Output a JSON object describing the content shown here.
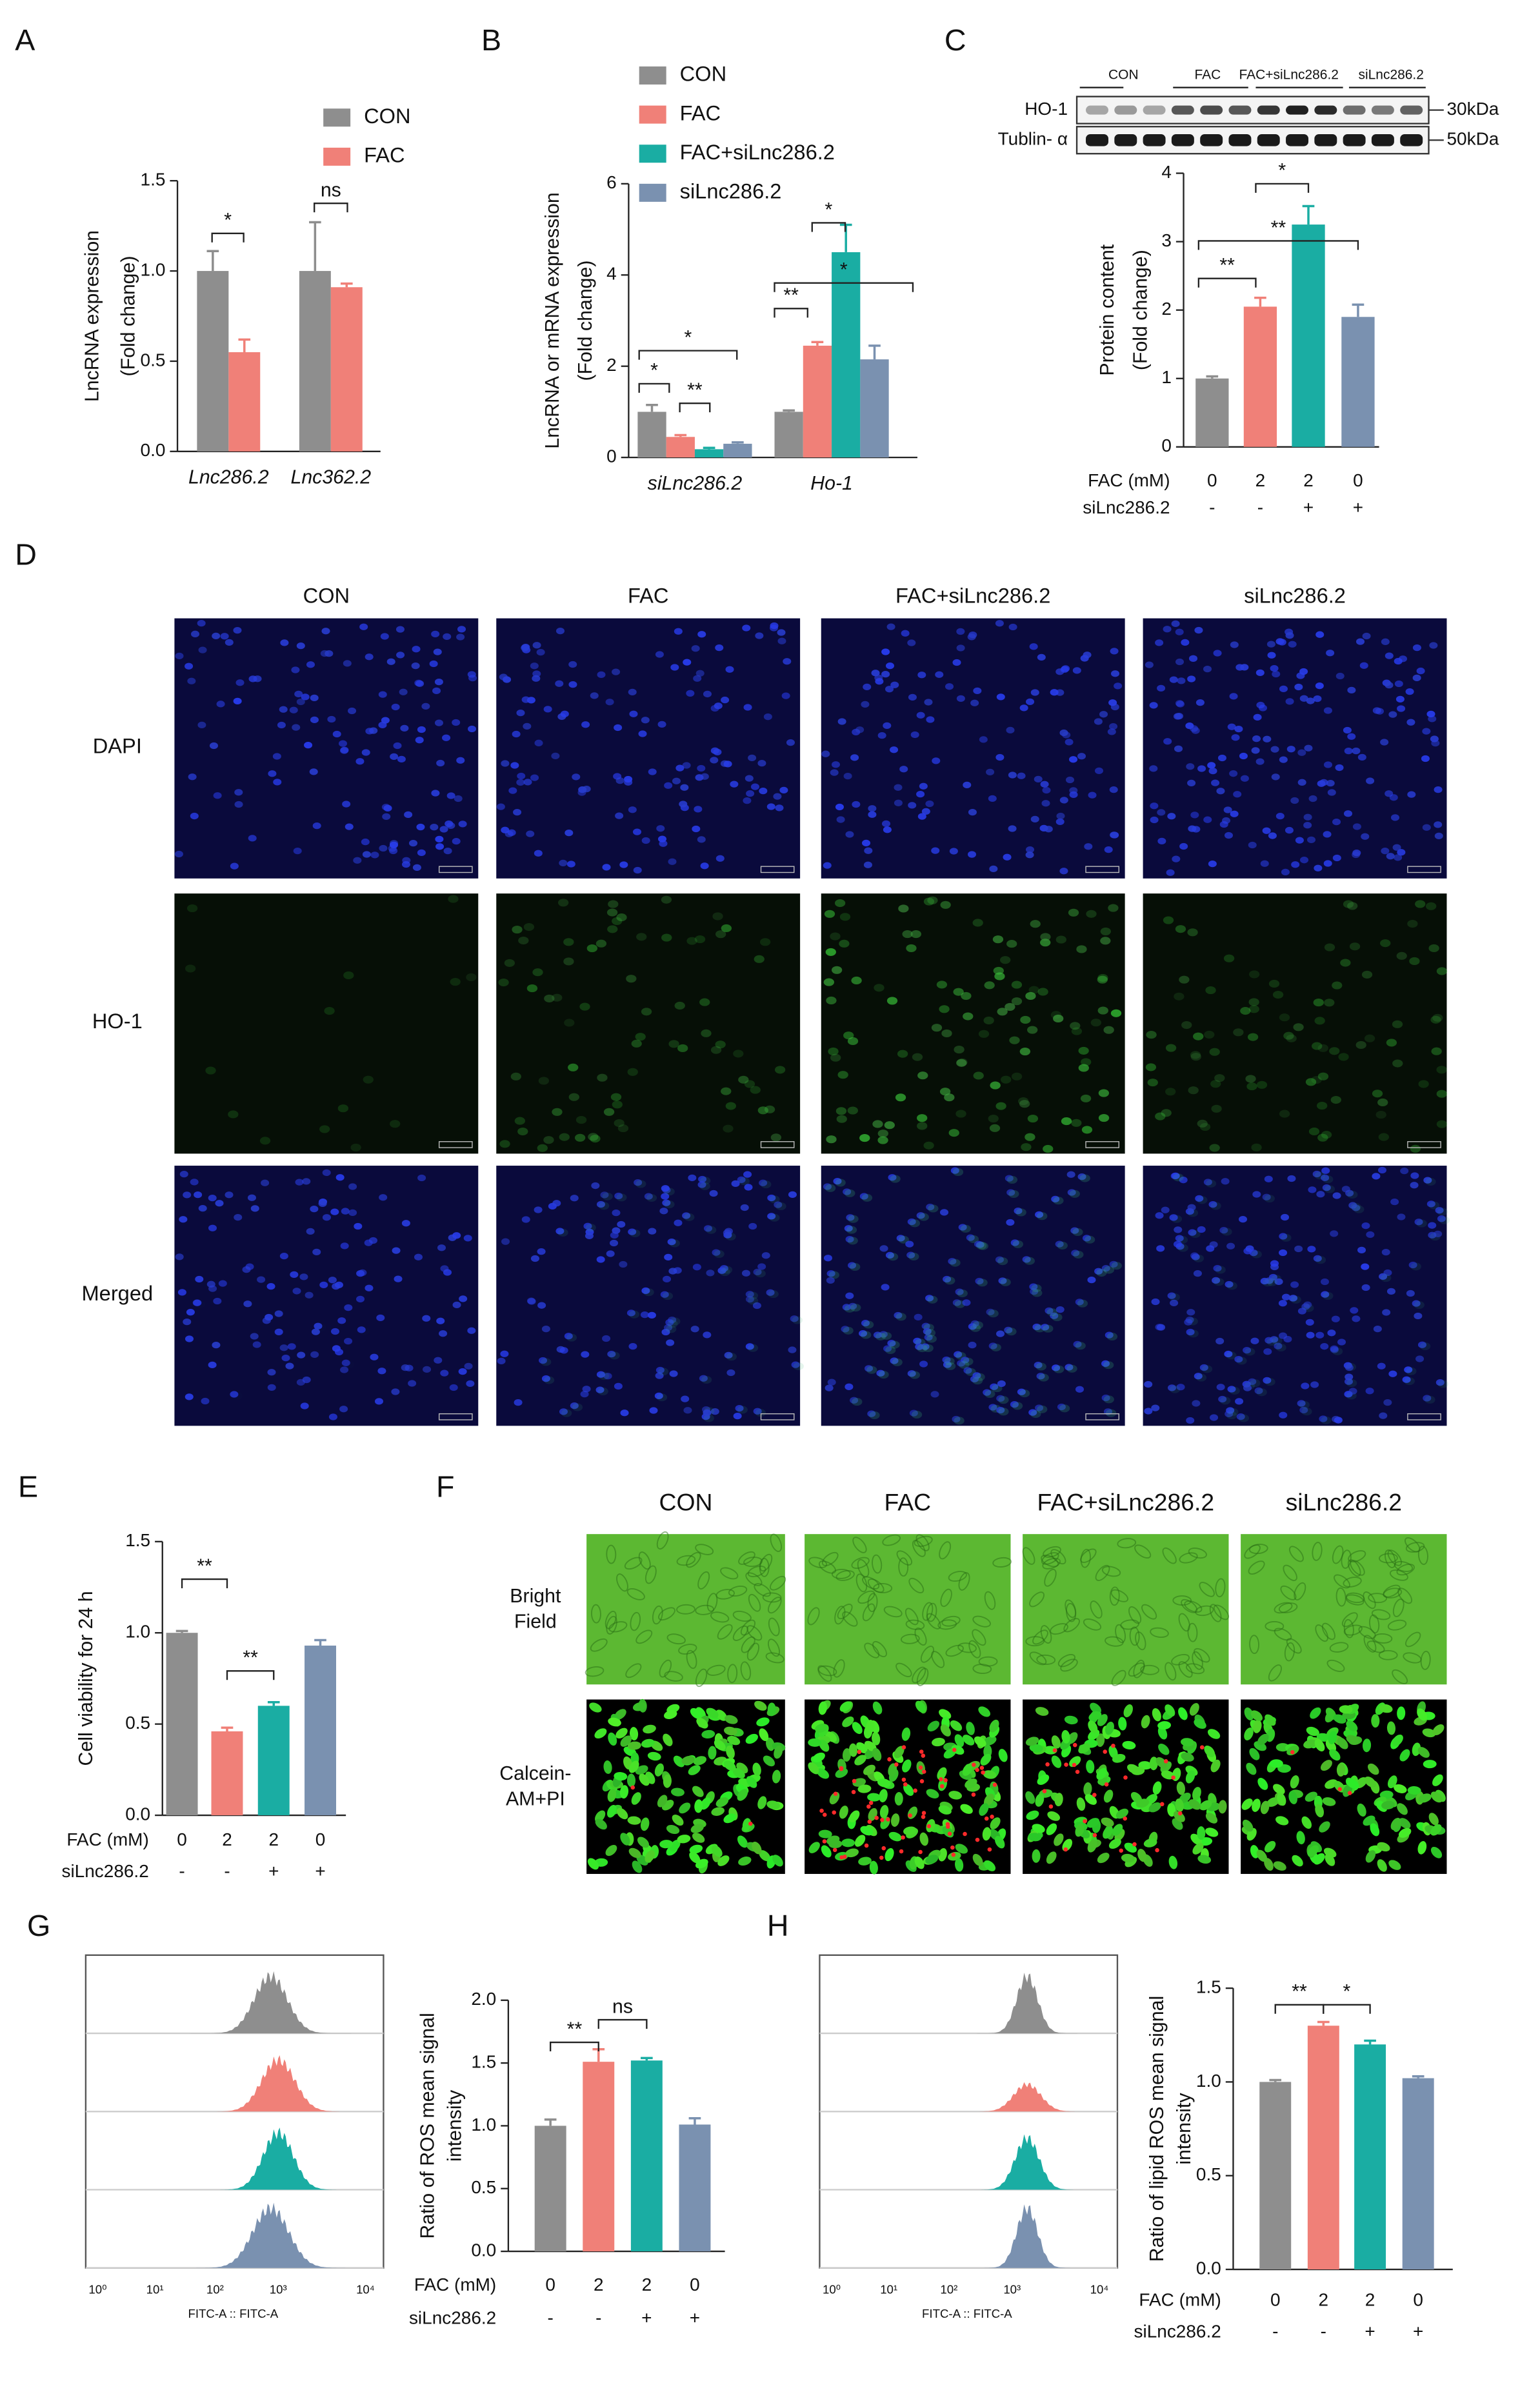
{
  "figure": {
    "panel_labels": [
      "A",
      "B",
      "C",
      "D",
      "E",
      "F",
      "G",
      "H"
    ],
    "blot": {
      "lanes": [
        "CON",
        "FAC",
        "FAC+siLnc286.2",
        "siLnc286.2"
      ],
      "bands": [
        "HO-1",
        "Tublin- α"
      ],
      "sizes": [
        "30kDa",
        "50kDa"
      ]
    },
    "panel_d": {
      "columns": [
        "CON",
        "FAC",
        "FAC+siLnc286.2",
        "siLnc286.2"
      ],
      "rows": [
        "DAPI",
        "HO-1",
        "Merged"
      ]
    },
    "panel_f": {
      "columns": [
        "CON",
        "FAC",
        "FAC+siLnc286.2",
        "siLnc286.2"
      ],
      "rows": [
        [
          "Bright",
          "Field"
        ],
        [
          "Calcein-",
          "AM+PI"
        ]
      ]
    },
    "flow_g": {
      "xlabel": "FITC-A :: FITC-A",
      "xticks": [
        "10⁰",
        "10¹",
        "10²",
        "10³",
        "10⁴"
      ]
    },
    "flow_h": {
      "xlabel": "FITC-A :: FITC-A",
      "xticks": [
        "10⁰",
        "10¹",
        "10²",
        "10³",
        "10⁴"
      ]
    }
  },
  "chart_data": [
    {
      "type": "bar",
      "ylabel": [
        "LncRNA expression",
        "(Fold change)"
      ],
      "categories": [
        "Lnc286.2",
        "Lnc362.2"
      ],
      "series": [
        {
          "name": "CON",
          "color": "#8e8e8e",
          "values": [
            1.0,
            1.0
          ],
          "errors": [
            0.11,
            0.27
          ]
        },
        {
          "name": "FAC",
          "color": "#f08078",
          "values": [
            0.55,
            0.91
          ],
          "errors": [
            0.07,
            0.02
          ]
        }
      ],
      "ylim": [
        0,
        1.5
      ],
      "yticks": [
        {
          "value": 0,
          "label": "0.0"
        },
        {
          "value": 0.5,
          "label": "0.5"
        },
        {
          "value": 1,
          "label": "1.0"
        },
        {
          "value": 1.5,
          "label": "1.5"
        }
      ],
      "annotations": [
        "*",
        "ns"
      ]
    },
    {
      "type": "bar",
      "ylabel": [
        "LncRNA or mRNA expression",
        "(Fold change)"
      ],
      "categories": [
        "siLnc286.2",
        "Ho-1"
      ],
      "series": [
        {
          "name": "CON",
          "color": "#8e8e8e",
          "values": [
            1.0,
            1.0
          ],
          "errors": [
            0.15,
            0.03
          ]
        },
        {
          "name": "FAC",
          "color": "#f08078",
          "values": [
            0.45,
            2.45
          ],
          "errors": [
            0.04,
            0.08
          ]
        },
        {
          "name": "FAC+siLnc286.2",
          "color": "#1aada3",
          "values": [
            0.18,
            4.5
          ],
          "errors": [
            0.03,
            0.6
          ]
        },
        {
          "name": "siLnc286.2",
          "color": "#7a91b0",
          "values": [
            0.3,
            2.15
          ],
          "errors": [
            0.03,
            0.3
          ]
        }
      ],
      "ylim": [
        0,
        6
      ],
      "yticks": [
        0,
        2,
        4,
        6
      ],
      "annotations": [
        "*",
        "**",
        "*",
        "**",
        "*",
        "*"
      ]
    },
    {
      "type": "bar",
      "ylabel": [
        "Protein content",
        "(Fold change)"
      ],
      "values": [
        1.0,
        2.05,
        3.25,
        1.9
      ],
      "errors": [
        0.03,
        0.13,
        0.27,
        0.18
      ],
      "colors": [
        "#8e8e8e",
        "#f08078",
        "#1aada3",
        "#7a91b0"
      ],
      "ylim": [
        0,
        4
      ],
      "yticks": [
        0,
        1,
        2,
        3,
        4
      ],
      "conditions": [
        {
          "label": "FAC (mM)",
          "values": [
            "0",
            "2",
            "2",
            "0"
          ]
        },
        {
          "label": "siLnc286.2",
          "values": [
            "-",
            "-",
            "+",
            "+"
          ]
        }
      ],
      "annotations": [
        "**",
        "*",
        "**"
      ]
    },
    {
      "type": "bar",
      "ylabel": [
        "Cell viability for 24 h"
      ],
      "values": [
        1.0,
        0.46,
        0.6,
        0.93
      ],
      "errors": [
        0.01,
        0.02,
        0.02,
        0.03
      ],
      "colors": [
        "#8e8e8e",
        "#f08078",
        "#1aada3",
        "#7a91b0"
      ],
      "ylim": [
        0,
        1.5
      ],
      "yticks": [
        {
          "value": 0,
          "label": "0.0"
        },
        {
          "value": 0.5,
          "label": "0.5"
        },
        {
          "value": 1,
          "label": "1.0"
        },
        {
          "value": 1.5,
          "label": "1.5"
        }
      ],
      "conditions": [
        {
          "label": "FAC (mM)",
          "values": [
            "0",
            "2",
            "2",
            "0"
          ]
        },
        {
          "label": "siLnc286.2",
          "values": [
            "-",
            "-",
            "+",
            "+"
          ]
        }
      ],
      "annotations": [
        "**",
        "**"
      ]
    },
    {
      "type": "bar",
      "ylabel": [
        "Ratio of ROS mean signal",
        "intensity"
      ],
      "values": [
        1.0,
        1.51,
        1.52,
        1.01
      ],
      "errors": [
        0.05,
        0.1,
        0.02,
        0.05
      ],
      "colors": [
        "#8e8e8e",
        "#f08078",
        "#1aada3",
        "#7a91b0"
      ],
      "ylim": [
        0,
        2
      ],
      "yticks": [
        {
          "value": 0,
          "label": "0.0"
        },
        {
          "value": 0.5,
          "label": "0.5"
        },
        {
          "value": 1,
          "label": "1.0"
        },
        {
          "value": 1.5,
          "label": "1.5"
        },
        {
          "value": 2,
          "label": "2.0"
        }
      ],
      "conditions": [
        {
          "label": "FAC (mM)",
          "values": [
            "0",
            "2",
            "2",
            "0"
          ]
        },
        {
          "label": "siLnc286.2",
          "values": [
            "-",
            "-",
            "+",
            "+"
          ]
        }
      ],
      "annotations": [
        "**",
        "ns"
      ]
    },
    {
      "type": "bar",
      "ylabel": [
        "Ratio of lipid ROS mean signal",
        "intensity"
      ],
      "values": [
        1.0,
        1.3,
        1.2,
        1.02
      ],
      "errors": [
        0.01,
        0.02,
        0.02,
        0.01
      ],
      "colors": [
        "#8e8e8e",
        "#f08078",
        "#1aada3",
        "#7a91b0"
      ],
      "ylim": [
        0,
        1.5
      ],
      "yticks": [
        {
          "value": 0,
          "label": "0.0"
        },
        {
          "value": 0.5,
          "label": "0.5"
        },
        {
          "value": 1,
          "label": "1.0"
        },
        {
          "value": 1.5,
          "label": "1.5"
        }
      ],
      "conditions": [
        {
          "label": "FAC (mM)",
          "values": [
            "0",
            "2",
            "2",
            "0"
          ]
        },
        {
          "label": "siLnc286.2",
          "values": [
            "-",
            "-",
            "+",
            "+"
          ]
        }
      ],
      "annotations": [
        "**",
        "*"
      ]
    }
  ]
}
